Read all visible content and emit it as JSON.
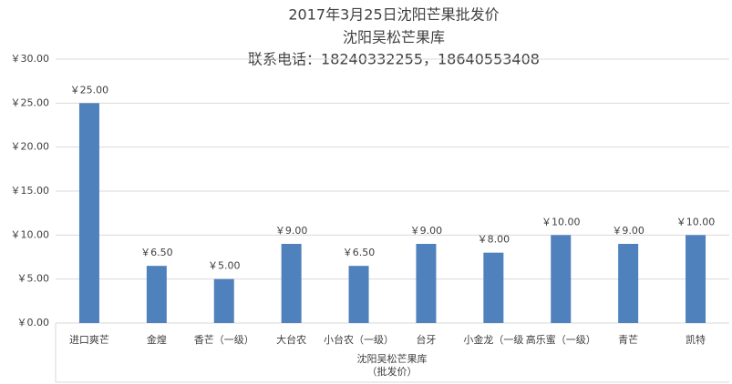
{
  "chart_data": {
    "type": "bar",
    "title": "2017年3月25日沈阳芒果批发价",
    "subtitle": "沈阳吴松芒果库",
    "annotation": "联系电话：18240332255，18640553408",
    "x_label": [
      "沈阳吴松芒果库",
      "（批发价）"
    ],
    "categories": [
      "进口爽芒",
      "金煌",
      "香芒（一级）",
      "大台农",
      "小台农（一级）",
      "台牙",
      "小金龙（一级",
      "高乐蜜（一级）",
      "青芒",
      "凯特"
    ],
    "values": [
      25,
      6.5,
      5,
      9,
      6.5,
      9,
      8,
      10,
      9,
      10
    ],
    "value_labels": [
      "￥25.00",
      "￥6.50",
      "￥5.00",
      "￥9.00",
      "￥6.50",
      "￥9.00",
      "￥8.00",
      "￥10.00",
      "￥9.00",
      "￥10.00"
    ],
    "color": "#4f81bd",
    "ylim": [
      0,
      30
    ],
    "yticks": [
      {
        "value": 0,
        "label": "￥0.00"
      },
      {
        "value": 5,
        "label": "￥5.00"
      },
      {
        "value": 10,
        "label": "￥10.00"
      },
      {
        "value": 15,
        "label": "￥15.00"
      },
      {
        "value": 20,
        "label": "￥20.00"
      },
      {
        "value": 25,
        "label": "￥25.00"
      },
      {
        "value": 30,
        "label": "￥30.00"
      }
    ],
    "grid": true
  }
}
